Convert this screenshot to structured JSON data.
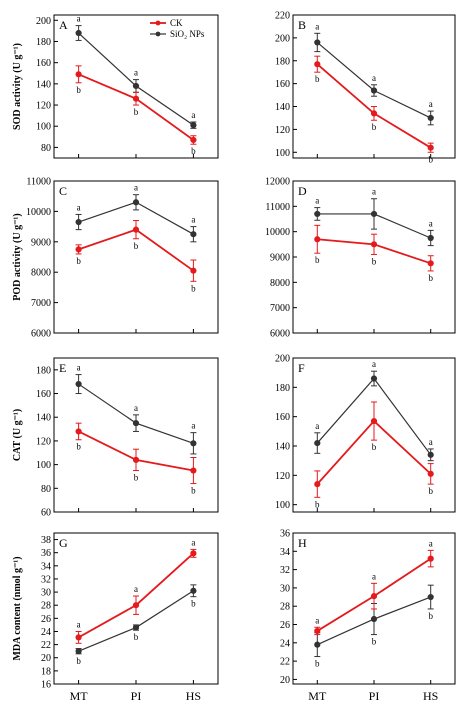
{
  "figure": {
    "x_categories": [
      "MT",
      "PI",
      "HS"
    ],
    "colors": {
      "CK": "#e41a1c",
      "SiO2": "#333333",
      "axis": "#000000"
    },
    "legend": {
      "ck_label": "CK",
      "sio2_label": "SiO₂ NPs"
    }
  },
  "chart_data": [
    {
      "type": "line",
      "panel": "A",
      "ylabel": "SOD activity (U g⁻¹)",
      "ylim": [
        70,
        205
      ],
      "yticks": [
        80,
        100,
        120,
        140,
        160,
        180,
        200
      ],
      "categories": [
        "MT",
        "PI",
        "HS"
      ],
      "legend_position": "top-right",
      "series": [
        {
          "name": "CK",
          "values": [
            149,
            126,
            87
          ],
          "errors": [
            8,
            6,
            4
          ],
          "letters": [
            "b",
            "b",
            "b"
          ]
        },
        {
          "name": "SiO₂ NPs",
          "values": [
            188,
            138,
            101
          ],
          "errors": [
            7,
            6,
            3
          ],
          "letters": [
            "a",
            "a",
            "a"
          ]
        }
      ]
    },
    {
      "type": "line",
      "panel": "B",
      "ylabel": "",
      "ylim": [
        95,
        220
      ],
      "yticks": [
        100,
        120,
        140,
        160,
        180,
        200,
        220
      ],
      "categories": [
        "MT",
        "PI",
        "HS"
      ],
      "series": [
        {
          "name": "CK",
          "values": [
            177,
            134,
            104
          ],
          "errors": [
            7,
            6,
            4
          ],
          "letters": [
            "b",
            "b",
            "b"
          ]
        },
        {
          "name": "SiO₂ NPs",
          "values": [
            196,
            154,
            130
          ],
          "errors": [
            8,
            5,
            6
          ],
          "letters": [
            "a",
            "a",
            "a"
          ]
        }
      ]
    },
    {
      "type": "line",
      "panel": "C",
      "ylabel": "POD activity (U g⁻¹)",
      "ylim": [
        6000,
        11000
      ],
      "yticks": [
        6000,
        7000,
        8000,
        9000,
        10000,
        11000
      ],
      "categories": [
        "MT",
        "PI",
        "HS"
      ],
      "series": [
        {
          "name": "CK",
          "values": [
            8750,
            9400,
            8050
          ],
          "errors": [
            150,
            300,
            350
          ],
          "letters": [
            "b",
            "b",
            "b"
          ]
        },
        {
          "name": "SiO₂ NPs",
          "values": [
            9650,
            10300,
            9250
          ],
          "errors": [
            250,
            250,
            250
          ],
          "letters": [
            "a",
            "a",
            "a"
          ]
        }
      ]
    },
    {
      "type": "line",
      "panel": "D",
      "ylabel": "",
      "ylim": [
        6000,
        12000
      ],
      "yticks": [
        6000,
        7000,
        8000,
        9000,
        10000,
        11000,
        12000
      ],
      "categories": [
        "MT",
        "PI",
        "HS"
      ],
      "series": [
        {
          "name": "CK",
          "values": [
            9700,
            9500,
            8750
          ],
          "errors": [
            550,
            400,
            300
          ],
          "letters": [
            "b",
            "b",
            "b"
          ]
        },
        {
          "name": "SiO₂ NPs",
          "values": [
            10700,
            10700,
            9750
          ],
          "errors": [
            250,
            600,
            300
          ],
          "letters": [
            "a",
            "a",
            "a"
          ]
        }
      ]
    },
    {
      "type": "line",
      "panel": "E",
      "ylabel": "CAT (U g⁻¹)",
      "ylim": [
        60,
        190
      ],
      "yticks": [
        60,
        80,
        100,
        120,
        140,
        160,
        180
      ],
      "categories": [
        "MT",
        "PI",
        "HS"
      ],
      "series": [
        {
          "name": "CK",
          "values": [
            128,
            104,
            95
          ],
          "errors": [
            7,
            9,
            11
          ],
          "letters": [
            "b",
            "b",
            "b"
          ]
        },
        {
          "name": "SiO₂ NPs",
          "values": [
            168,
            135,
            118
          ],
          "errors": [
            8,
            7,
            9
          ],
          "letters": [
            "a",
            "a",
            "a"
          ]
        }
      ]
    },
    {
      "type": "line",
      "panel": "F",
      "ylabel": "",
      "ylim": [
        95,
        200
      ],
      "yticks": [
        100,
        120,
        140,
        160,
        180,
        200
      ],
      "categories": [
        "MT",
        "PI",
        "HS"
      ],
      "series": [
        {
          "name": "CK",
          "values": [
            114,
            157,
            121
          ],
          "errors": [
            9,
            13,
            7
          ],
          "letters": [
            "b",
            "b",
            "b"
          ]
        },
        {
          "name": "SiO₂ NPs",
          "values": [
            142,
            186,
            134
          ],
          "errors": [
            7,
            5,
            4
          ],
          "letters": [
            "a",
            "a",
            "a"
          ]
        }
      ]
    },
    {
      "type": "line",
      "panel": "G",
      "ylabel": "MDA content (nmol g⁻¹)",
      "ylim": [
        16,
        39
      ],
      "yticks": [
        16,
        18,
        20,
        22,
        24,
        26,
        28,
        30,
        32,
        34,
        36,
        38
      ],
      "categories": [
        "MT",
        "PI",
        "HS"
      ],
      "series": [
        {
          "name": "CK",
          "values": [
            23.1,
            28.0,
            35.9
          ],
          "errors": [
            0.9,
            1.4,
            0.6
          ],
          "letters": [
            "a",
            "a",
            "a"
          ]
        },
        {
          "name": "SiO₂ NPs",
          "values": [
            21.0,
            24.6,
            30.2
          ],
          "errors": [
            0.4,
            0.4,
            0.9
          ],
          "letters": [
            "b",
            "b",
            "b"
          ]
        }
      ]
    },
    {
      "type": "line",
      "panel": "H",
      "ylabel": "",
      "ylim": [
        19.5,
        36
      ],
      "yticks": [
        20,
        22,
        24,
        26,
        28,
        30,
        32,
        34,
        36
      ],
      "categories": [
        "MT",
        "PI",
        "HS"
      ],
      "series": [
        {
          "name": "CK",
          "values": [
            25.3,
            29.1,
            33.2
          ],
          "errors": [
            0.4,
            1.4,
            0.9
          ],
          "letters": [
            "a",
            "a",
            "a"
          ]
        },
        {
          "name": "SiO₂ NPs",
          "values": [
            23.8,
            26.6,
            29.0
          ],
          "errors": [
            1.3,
            1.7,
            1.3
          ],
          "letters": [
            "b",
            "b",
            "b"
          ]
        }
      ]
    }
  ]
}
